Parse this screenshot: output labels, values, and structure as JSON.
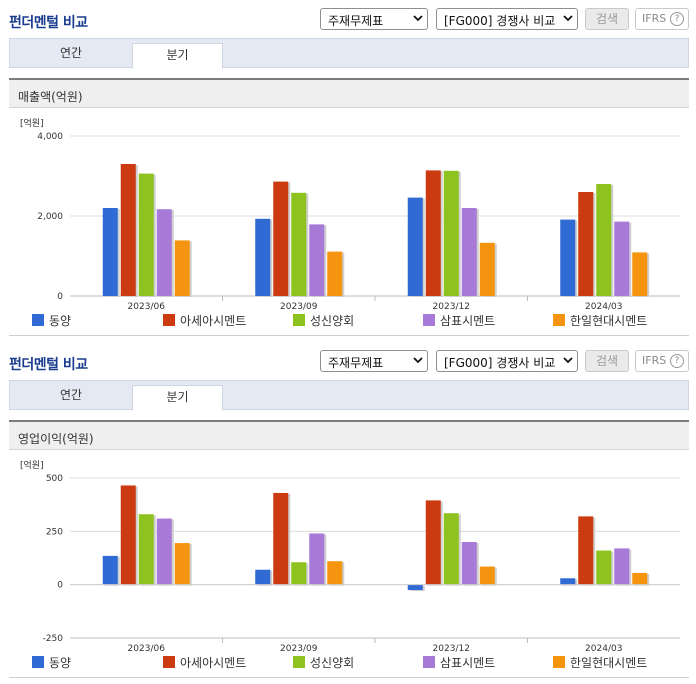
{
  "colors": {
    "series": [
      "#2f6ad5",
      "#cc3a11",
      "#8dc21f",
      "#a77ad8",
      "#f5950f"
    ]
  },
  "sections": [
    {
      "title": "펀더멘털 비교",
      "select1": "주재무제표",
      "select2": "[FG000] 경쟁사 비교",
      "search_label": "검색",
      "ifrs_label": "IFRS",
      "ifrs_help": "?",
      "tabs": [
        "연간",
        "분기"
      ],
      "active_tab": "분기",
      "metric": "매출액(억원)"
    },
    {
      "title": "펀더멘털 비교",
      "select1": "주재무제표",
      "select2": "[FG000] 경쟁사 비교",
      "search_label": "검색",
      "ifrs_label": "IFRS",
      "ifrs_help": "?",
      "tabs": [
        "연간",
        "분기"
      ],
      "active_tab": "분기",
      "metric": "영업이익(억원)"
    }
  ],
  "legend": [
    "동양",
    "아세아시멘트",
    "성신양회",
    "삼표시멘트",
    "한일현대시멘트"
  ],
  "chart_data": [
    {
      "type": "bar",
      "title": "매출액(억원)",
      "unit_label": "[억원]",
      "categories": [
        "2023/06",
        "2023/09",
        "2023/12",
        "2024/03"
      ],
      "ylim": [
        0,
        4000
      ],
      "yticks": [
        0,
        2000,
        4000
      ],
      "ytick_labels": [
        "0",
        "2,000",
        "4,000"
      ],
      "series": [
        {
          "name": "동양",
          "values": [
            2200,
            1930,
            2460,
            1910
          ]
        },
        {
          "name": "아세아시멘트",
          "values": [
            3300,
            2860,
            3140,
            2600
          ]
        },
        {
          "name": "성신양회",
          "values": [
            3060,
            2580,
            3130,
            2800
          ]
        },
        {
          "name": "삼표시멘트",
          "values": [
            2170,
            1790,
            2200,
            1860
          ]
        },
        {
          "name": "한일현대시멘트",
          "values": [
            1390,
            1110,
            1330,
            1090
          ]
        }
      ]
    },
    {
      "type": "bar",
      "title": "영업이익(억원)",
      "unit_label": "[억원]",
      "categories": [
        "2023/06",
        "2023/09",
        "2023/12",
        "2024/03"
      ],
      "ylim": [
        -250,
        500
      ],
      "yticks": [
        -250,
        0,
        250,
        500
      ],
      "ytick_labels": [
        "-250",
        "0",
        "250",
        "500"
      ],
      "series": [
        {
          "name": "동양",
          "values": [
            135,
            70,
            -25,
            30
          ]
        },
        {
          "name": "아세아시멘트",
          "values": [
            465,
            430,
            395,
            320
          ]
        },
        {
          "name": "성신양회",
          "values": [
            330,
            105,
            335,
            160
          ]
        },
        {
          "name": "삼표시멘트",
          "values": [
            310,
            240,
            200,
            170
          ]
        },
        {
          "name": "한일현대시멘트",
          "values": [
            195,
            110,
            85,
            55
          ]
        }
      ]
    }
  ]
}
